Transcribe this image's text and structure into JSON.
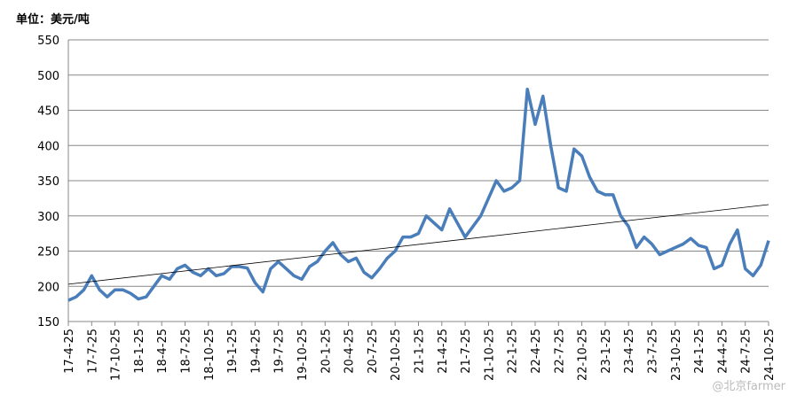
{
  "chart_data": {
    "type": "line",
    "y_label": "单位：美元/吨",
    "categories": [
      "17-4-25",
      null,
      null,
      "17-7-25",
      null,
      null,
      "17-10-25",
      null,
      null,
      "18-1-25",
      null,
      null,
      "18-4-25",
      null,
      null,
      "18-7-25",
      null,
      null,
      "18-10-25",
      null,
      null,
      "19-1-25",
      null,
      null,
      "19-4-25",
      null,
      null,
      "19-7-25",
      null,
      null,
      "19-10-25",
      null,
      null,
      "20-1-25",
      null,
      null,
      "20-4-25",
      null,
      null,
      "20-7-25",
      null,
      null,
      "20-10-25",
      null,
      null,
      "21-1-25",
      null,
      null,
      "21-4-25",
      null,
      null,
      "21-7-25",
      null,
      null,
      "21-10-25",
      null,
      null,
      "22-1-25",
      null,
      null,
      "22-4-25",
      null,
      null,
      "22-7-25",
      null,
      null,
      "22-10-25",
      null,
      null,
      "23-1-25",
      null,
      null,
      "23-4-25",
      null,
      null,
      "23-7-25",
      null,
      null,
      "23-10-25",
      null,
      null,
      "24-1-25",
      null,
      null,
      "24-4-25",
      null,
      null,
      "24-7-25",
      null,
      null,
      "24-10-25"
    ],
    "values": [
      180,
      185,
      195,
      215,
      195,
      185,
      195,
      195,
      190,
      182,
      185,
      200,
      215,
      210,
      225,
      230,
      220,
      215,
      225,
      215,
      218,
      228,
      228,
      226,
      205,
      192,
      225,
      235,
      225,
      215,
      210,
      228,
      235,
      250,
      262,
      245,
      235,
      240,
      220,
      212,
      225,
      240,
      250,
      270,
      270,
      275,
      300,
      290,
      280,
      310,
      290,
      270,
      285,
      300,
      325,
      350,
      335,
      340,
      350,
      480,
      430,
      470,
      400,
      340,
      335,
      395,
      385,
      355,
      335,
      330,
      330,
      300,
      285,
      255,
      270,
      260,
      245,
      250,
      255,
      260,
      268,
      258,
      255,
      225,
      230,
      260,
      280,
      225,
      215,
      230,
      265
    ],
    "color": "#4a7ebb",
    "trendline": {
      "start": 203,
      "end": 316,
      "color": "#000000"
    },
    "ylim": [
      150,
      550
    ],
    "yticks": [
      150,
      200,
      250,
      300,
      350,
      400,
      450,
      500,
      550
    ],
    "grid": true,
    "watermark": "@北京farmer"
  }
}
